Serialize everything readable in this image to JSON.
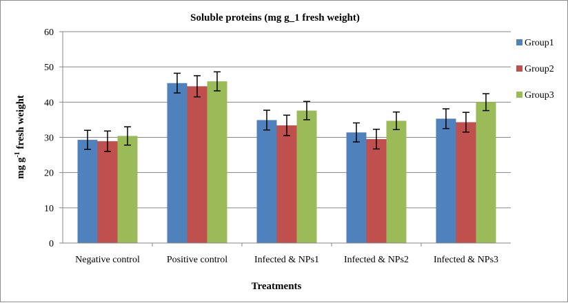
{
  "chart_data": {
    "type": "bar",
    "title": "Soluble proteins (mg g_1 fresh weight)",
    "xlabel": "Treatments",
    "ylabel_main": "mg g",
    "ylabel_sup": "-1",
    "ylabel_rest": " fresh weight",
    "ylim": [
      0,
      60
    ],
    "yticks": [
      0,
      10,
      20,
      30,
      40,
      50,
      60
    ],
    "ytick_labels": [
      "0",
      "10",
      "20",
      "30",
      "40",
      "50",
      "60"
    ],
    "grid": true,
    "legend_position": "right",
    "categories": [
      "Negative control",
      "Positive control",
      "Infected & NPs1",
      "Infected & NPs2",
      "Infected & NPs3"
    ],
    "series": [
      {
        "name": "Group1",
        "color": "#4f81bd",
        "values": [
          29.3,
          45.4,
          34.9,
          31.4,
          35.3
        ],
        "errors": [
          2.7,
          2.8,
          2.8,
          2.7,
          2.8
        ]
      },
      {
        "name": "Group2",
        "color": "#c0504d",
        "values": [
          28.9,
          44.5,
          33.4,
          29.5,
          34.3
        ],
        "errors": [
          2.9,
          3.0,
          2.9,
          2.8,
          2.8
        ]
      },
      {
        "name": "Group3",
        "color": "#9bbb59",
        "values": [
          30.4,
          45.9,
          37.6,
          34.7,
          40.0
        ],
        "errors": [
          2.6,
          2.7,
          2.6,
          2.5,
          2.4
        ]
      }
    ]
  }
}
